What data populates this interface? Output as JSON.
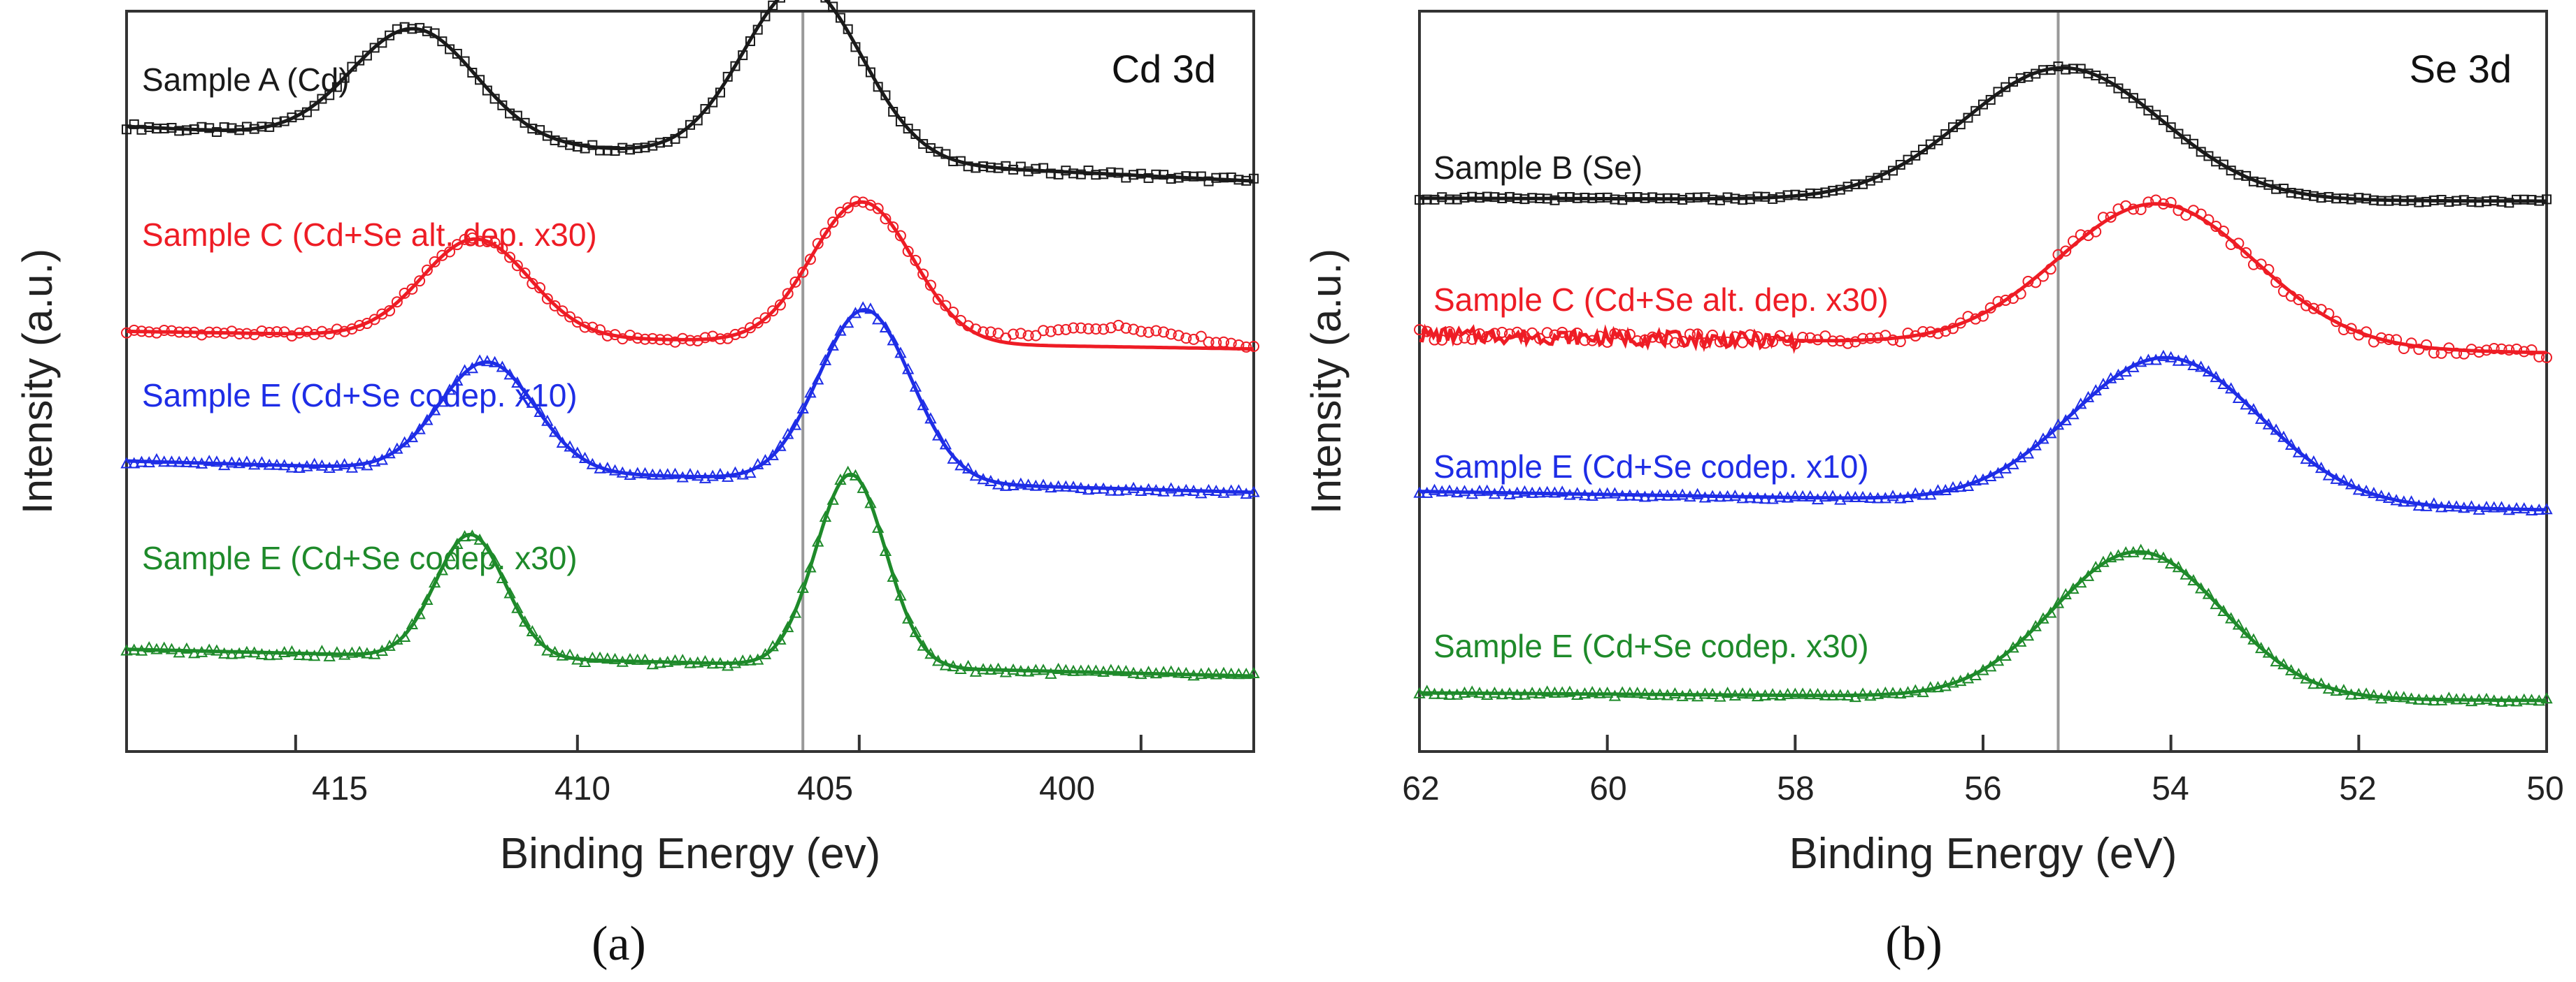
{
  "chart_data": [
    {
      "type": "line",
      "panel_label": "(a)",
      "title": "Cd 3d",
      "xlabel": "Binding Energy (ev)",
      "ylabel": "Intensity (a.u.)",
      "xlim": [
        418,
        398
      ],
      "x_reversed": true,
      "xticks": [
        415,
        410,
        405,
        400
      ],
      "reference_line_x": 406.0,
      "series": [
        {
          "name": "Sample A (Cd)",
          "color": "#1a1a1a",
          "marker": "square",
          "offset": 3.0,
          "baseline": [
            [
              418,
              0.25
            ],
            [
              398,
              0.02
            ]
          ],
          "peaks": [
            {
              "center": 412.9,
              "height": 0.47,
              "width": 1.1
            },
            {
              "center": 406.0,
              "height": 0.73,
              "width": 1.05
            }
          ],
          "bump": null
        },
        {
          "name": "Sample C (Cd+Se alt. dep. x30)",
          "color": "#ee1c25",
          "marker": "circle",
          "offset": 2.0,
          "baseline": [
            [
              418,
              0.02
            ],
            [
              398,
              -0.07
            ]
          ],
          "peaks": [
            {
              "center": 411.8,
              "height": 0.5,
              "width": 0.95
            },
            {
              "center": 404.95,
              "height": 0.72,
              "width": 0.9
            }
          ],
          "bump": {
            "center": 400.5,
            "height": 0.1,
            "width": 1.3
          }
        },
        {
          "name": "Sample E (Cd+Se codep. x10)",
          "color": "#1e2de6",
          "marker": "triangle",
          "offset": 1.0,
          "baseline": [
            [
              418,
              0.15
            ],
            [
              398,
              0.0
            ]
          ],
          "peaks": [
            {
              "center": 411.6,
              "height": 0.52,
              "width": 0.85
            },
            {
              "center": 404.9,
              "height": 0.82,
              "width": 0.82
            }
          ],
          "bump": null
        },
        {
          "name": "Sample E (Cd+Se codep. x30)",
          "color": "#1e8a2a",
          "marker": "triangle",
          "offset": 0.0,
          "baseline": [
            [
              418,
              0.12
            ],
            [
              398,
              0.0
            ]
          ],
          "peaks": [
            {
              "center": 411.9,
              "height": 0.55,
              "width": 0.62
            },
            {
              "center": 405.15,
              "height": 0.86,
              "width": 0.62
            }
          ],
          "bump": null
        }
      ]
    },
    {
      "type": "line",
      "panel_label": "(b)",
      "title": "Se 3d",
      "xlabel": "Binding Energy (eV)",
      "ylabel": "Intensity (a.u.)",
      "xlim": [
        62,
        50
      ],
      "x_reversed": true,
      "xticks": [
        62,
        60,
        58,
        56,
        54,
        52,
        50
      ],
      "reference_line_x": 55.2,
      "series": [
        {
          "name": "Sample B (Se)",
          "color": "#1a1a1a",
          "marker": "square",
          "offset": 3.0,
          "baseline": [
            [
              62,
              0.02
            ],
            [
              50,
              0.0
            ]
          ],
          "peaks": [
            {
              "center": 55.15,
              "height": 0.9,
              "width": 1.05
            }
          ],
          "bump": null
        },
        {
          "name": "Sample C (Cd+Se alt. dep. x30)",
          "color": "#ee1c25",
          "marker": "circle",
          "offset": 2.0,
          "baseline": [
            [
              62,
              0.12
            ],
            [
              50,
              0.0
            ]
          ],
          "peaks": [
            {
              "center": 54.15,
              "height": 0.95,
              "width": 1.05
            }
          ],
          "bump": null
        },
        {
          "name": "Sample E (Cd+Se codep. x10)",
          "color": "#1e2de6",
          "marker": "triangle",
          "offset": 1.0,
          "baseline": [
            [
              62,
              0.12
            ],
            [
              50,
              0.0
            ]
          ],
          "peaks": [
            {
              "center": 54.05,
              "height": 0.95,
              "width": 1.0
            }
          ],
          "bump": null
        },
        {
          "name": "Sample E (Cd+Se codep. x30)",
          "color": "#1e8a2a",
          "marker": "triangle",
          "offset": 0.0,
          "baseline": [
            [
              62,
              0.05
            ],
            [
              50,
              0.0
            ]
          ],
          "peaks": [
            {
              "center": 54.35,
              "height": 0.95,
              "width": 0.9
            }
          ],
          "bump": null
        }
      ]
    }
  ]
}
